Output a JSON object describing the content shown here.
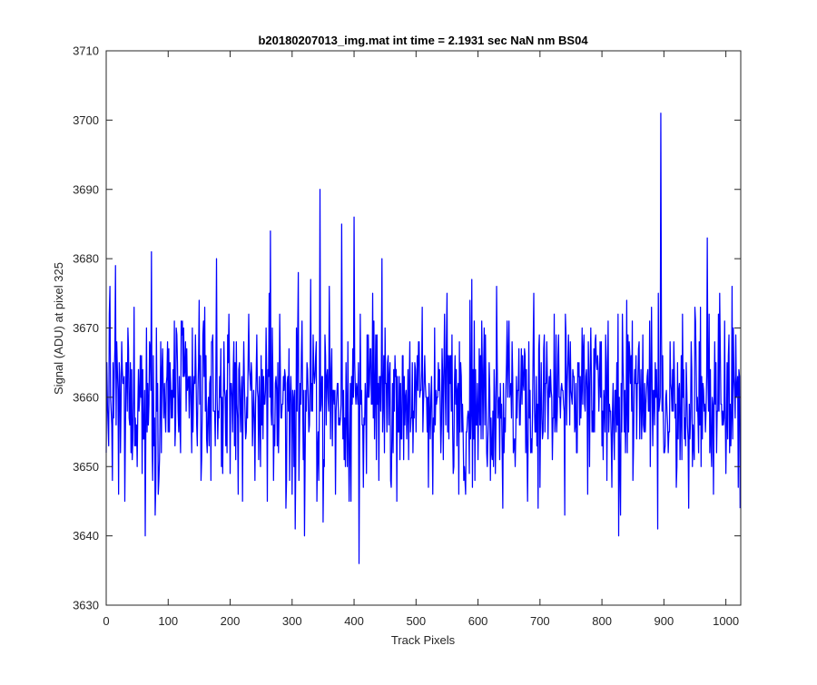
{
  "chart_data": {
    "type": "line",
    "title": "b20180207013_img.mat int time = 2.1931 sec  NaN nm BS04",
    "xlabel": "Track Pixels",
    "ylabel": "Signal (ADU) at pixel 325",
    "xlim": [
      0,
      1024
    ],
    "ylim": [
      3630,
      3710
    ],
    "x_ticks": [
      0,
      100,
      200,
      300,
      400,
      500,
      600,
      700,
      800,
      900,
      1000
    ],
    "y_ticks": [
      3630,
      3640,
      3650,
      3660,
      3670,
      3680,
      3690,
      3700,
      3710
    ],
    "x_tick_labels": [
      "0",
      "100",
      "200",
      "300",
      "400",
      "500",
      "600",
      "700",
      "800",
      "900",
      "1000"
    ],
    "y_tick_labels": [
      "3630",
      "3640",
      "3650",
      "3660",
      "3670",
      "3680",
      "3690",
      "3700",
      "3710"
    ],
    "grid": false,
    "line_color": "#0000ff",
    "series": [
      {
        "n_points": 1024,
        "mean": 3660,
        "x": [
          0,
          5,
          10,
          15,
          20,
          25,
          30,
          35,
          40,
          45,
          50,
          55,
          60,
          63,
          70,
          73,
          80,
          90,
          100,
          110,
          120,
          130,
          140,
          150,
          160,
          170,
          178,
          180,
          190,
          200,
          210,
          220,
          230,
          240,
          250,
          260,
          265,
          270,
          280,
          290,
          300,
          305,
          310,
          320,
          330,
          340,
          345,
          350,
          360,
          370,
          380,
          395,
          400,
          408,
          410,
          420,
          430,
          440,
          450,
          460,
          470,
          480,
          490,
          500,
          510,
          520,
          530,
          540,
          550,
          560,
          570,
          580,
          590,
          600,
          610,
          620,
          630,
          640,
          650,
          660,
          670,
          680,
          690,
          700,
          710,
          720,
          730,
          740,
          750,
          760,
          770,
          780,
          790,
          800,
          810,
          820,
          827,
          830,
          840,
          850,
          860,
          870,
          880,
          890,
          895,
          900,
          910,
          920,
          930,
          940,
          950,
          960,
          970,
          980,
          990,
          1000,
          1010,
          1020,
          1023
        ],
        "y": [
          3652,
          3672,
          3648,
          3679,
          3646,
          3668,
          3645,
          3670,
          3652,
          3673,
          3650,
          3666,
          3654,
          3640,
          3668,
          3681,
          3647,
          3664,
          3655,
          3671,
          3652,
          3667,
          3655,
          3674,
          3658,
          3668,
          3680,
          3654,
          3668,
          3649,
          3668,
          3645,
          3672,
          3648,
          3666,
          3645,
          3684,
          3648,
          3672,
          3644,
          3646,
          3641,
          3678,
          3640,
          3677,
          3645,
          3690,
          3642,
          3676,
          3646,
          3685,
          3645,
          3686,
          3636,
          3672,
          3649,
          3675,
          3648,
          3670,
          3647,
          3663,
          3651,
          3668,
          3655,
          3673,
          3647,
          3670,
          3652,
          3675,
          3649,
          3668,
          3646,
          3677,
          3651,
          3670,
          3648,
          3676,
          3644,
          3671,
          3650,
          3667,
          3645,
          3675,
          3647,
          3662,
          3651,
          3669,
          3643,
          3661,
          3652,
          3667,
          3650,
          3669,
          3653,
          3671,
          3651,
          3640,
          3643,
          3674,
          3648,
          3668,
          3655,
          3673,
          3641,
          3701,
          3652,
          3668,
          3647,
          3672,
          3644,
          3673,
          3650,
          3683,
          3646,
          3675,
          3649,
          3676,
          3647,
          3644
        ]
      }
    ]
  }
}
